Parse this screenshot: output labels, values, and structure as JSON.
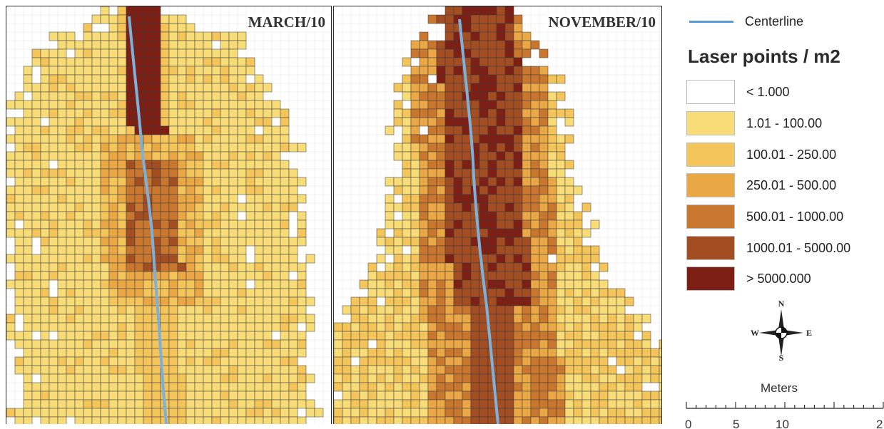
{
  "panels": [
    {
      "title": "MARCH/10"
    },
    {
      "title": "NOVEMBER/10"
    }
  ],
  "legend": {
    "centerline_label": "Centerline",
    "centerline_color": "#5b9bd5",
    "title": "Laser points / m2",
    "classes": [
      {
        "label": "< 1.000",
        "color": "#ffffff"
      },
      {
        "label": "1.01 - 100.00",
        "color": "#f8dc77"
      },
      {
        "label": "100.01 - 250.00",
        "color": "#f3c55b"
      },
      {
        "label": "250.01 - 500.00",
        "color": "#e9a845"
      },
      {
        "label": "500.01 - 1000.00",
        "color": "#c9772e"
      },
      {
        "label": "1000.01 - 5000.00",
        "color": "#a24e22"
      },
      {
        "label": "> 5000.000",
        "color": "#7d1f14"
      }
    ]
  },
  "compass": {
    "n": "N",
    "s": "S",
    "e": "E",
    "w": "W"
  },
  "scale": {
    "title": "Meters",
    "ticks": [
      "0",
      "5",
      "10",
      "2"
    ]
  }
}
